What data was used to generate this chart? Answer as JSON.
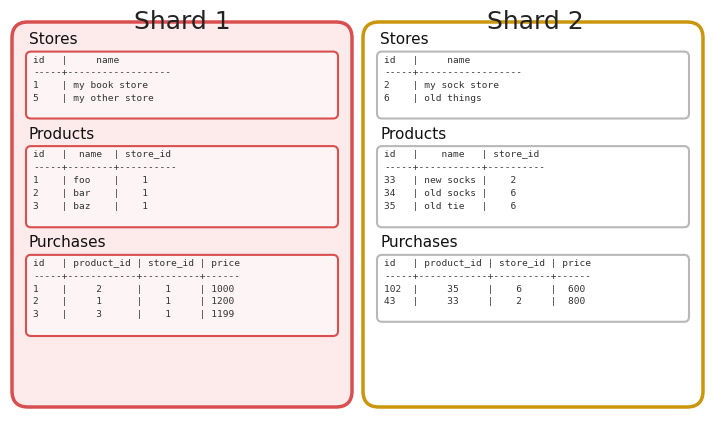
{
  "title1": "Shard 1",
  "title2": "Shard 2",
  "title_fontsize": 18,
  "bg_color": "#ffffff",
  "shard1_outer_color": "#d94f4f",
  "shard1_outer_fill": "#fdeaea",
  "shard1_inner_color": "#d94f4f",
  "shard1_inner_fill": "#fdf5f5",
  "shard2_outer_color": "#c9960c",
  "shard2_outer_fill": "#ffffff",
  "shard2_inner_color": "#b8b8b8",
  "shard2_inner_fill": "#ffffff",
  "table_label_fontsize": 11,
  "mono_fontsize": 6.8,
  "shard1_stores": "id   |     name\n-----+------------------\n1    | my book store\n5    | my other store",
  "shard1_products": "id   |  name  | store_id\n-----+--------+----------\n1    | foo    |    1\n2    | bar    |    1\n3    | baz    |    1",
  "shard1_purchases": "id   | product_id | store_id | price\n-----+------------+----------+------\n1    |     2      |    1     | 1000\n2    |     1      |    1     | 1200\n3    |     3      |    1     | 1199",
  "shard2_stores": "id   |     name\n-----+------------------\n2    | my sock store\n6    | old things",
  "shard2_products": "id   |    name   | store_id\n-----+-----------+----------\n33   | new socks |    2\n34   | old socks |    6\n35   | old tie   |    6",
  "shard2_purchases": "id   | product_id | store_id | price\n-----+------------+----------+------\n102  |     35     |    6     |  600\n43   |     33     |    2     |  800"
}
